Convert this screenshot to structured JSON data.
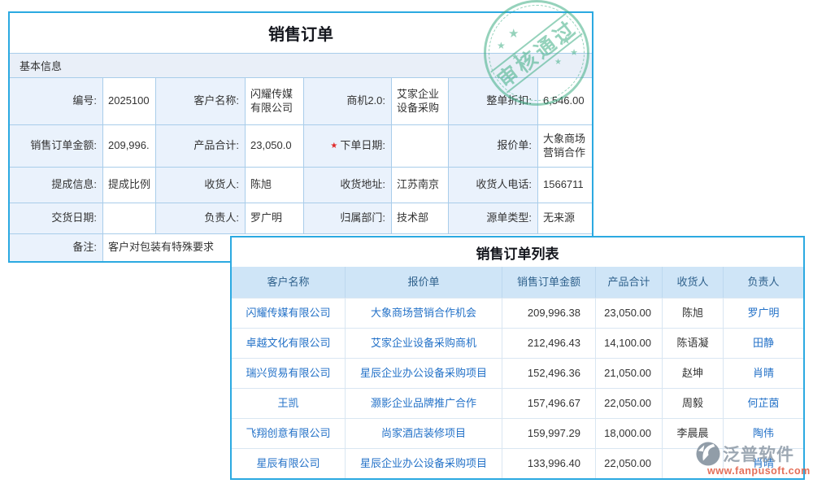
{
  "colors": {
    "accent": "#2BA9E1",
    "grid": "#A9CDEA",
    "labelbg": "#EAF2FC",
    "sectionbg": "#E9EFF8",
    "theadbg": "#CFE5F7",
    "theadtext": "#2F618C",
    "link": "#2472C8",
    "text": "#333333",
    "sealgreen": "#3FAE85",
    "wmgray": "#8D99A6",
    "wmorange": "#E0573D"
  },
  "form": {
    "title": "销售订单",
    "section": "基本信息",
    "required_marker": "★",
    "rows": [
      [
        {
          "label": "编号:",
          "value": "2025100"
        },
        {
          "label": "客户名称:",
          "value": "闪耀传媒有限公司"
        },
        {
          "label": "商机2.0:",
          "value": "艾家企业设备采购"
        },
        {
          "label": "整单折扣:",
          "value": "6,546.00"
        }
      ],
      [
        {
          "label": "销售订单金额:",
          "value": "209,996."
        },
        {
          "label": "产品合计:",
          "value": "23,050.0"
        },
        {
          "label": "下单日期:",
          "value": "",
          "required": true
        },
        {
          "label": "报价单:",
          "value": "大象商场营销合作"
        }
      ],
      [
        {
          "label": "提成信息:",
          "value": "提成比例"
        },
        {
          "label": "收货人:",
          "value": "陈旭"
        },
        {
          "label": "收货地址:",
          "value": "江苏南京"
        },
        {
          "label": "收货人电话:",
          "value": "1566711"
        }
      ],
      [
        {
          "label": "交货日期:",
          "value": ""
        },
        {
          "label": "负责人:",
          "value": "罗广明"
        },
        {
          "label": "归属部门:",
          "value": "技术部"
        },
        {
          "label": "源单类型:",
          "value": "无来源"
        }
      ]
    ],
    "remark": {
      "label": "备注:",
      "value": "客户对包装有特殊要求"
    }
  },
  "seal": {
    "text": "审核通过",
    "star": "★"
  },
  "table": {
    "title": "销售订单列表",
    "columns": [
      "客户名称",
      "报价单",
      "销售订单金额",
      "产品合计",
      "收货人",
      "负责人"
    ],
    "rows": [
      [
        "闪耀传媒有限公司",
        "大象商场营销合作机会",
        "209,996.38",
        "23,050.00",
        "陈旭",
        "罗广明"
      ],
      [
        "卓越文化有限公司",
        "艾家企业设备采购商机",
        "212,496.43",
        "14,100.00",
        "陈语凝",
        "田静"
      ],
      [
        "瑞兴贸易有限公司",
        "星辰企业办公设备采购项目",
        "152,496.36",
        "21,050.00",
        "赵坤",
        "肖晴"
      ],
      [
        "王凯",
        "灏影企业品牌推广合作",
        "157,496.67",
        "22,050.00",
        "周毅",
        "何芷茵"
      ],
      [
        "飞翔创意有限公司",
        "尚家酒店装修项目",
        "159,997.29",
        "18,000.00",
        "李晨晨",
        "陶伟"
      ],
      [
        "星辰有限公司",
        "星辰企业办公设备采购项目",
        "133,996.40",
        "22,050.00",
        "",
        "肖晴"
      ]
    ]
  },
  "watermark": {
    "name": "泛普软件",
    "url": "www.fanpusoft.com"
  }
}
